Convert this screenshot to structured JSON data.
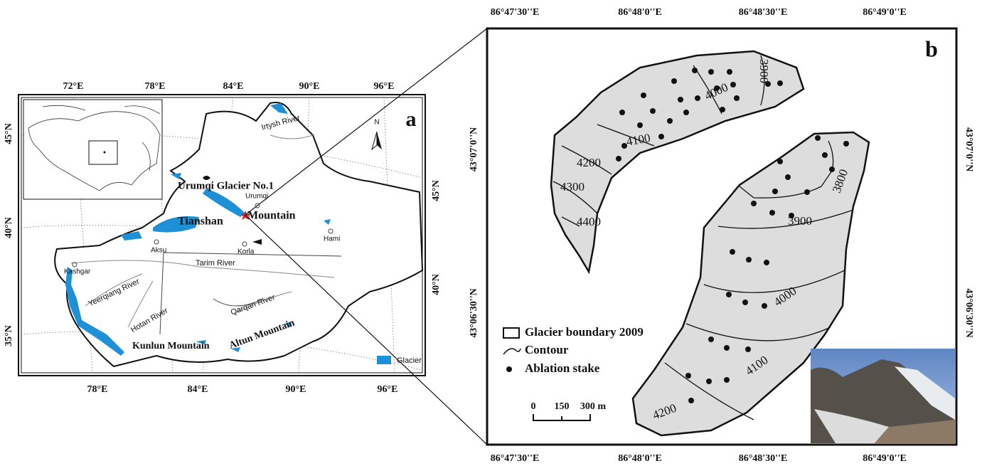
{
  "panel_a": {
    "label": "a",
    "lon_top": [
      "72°E",
      "78°E",
      "84°E",
      "90°E",
      "96°E"
    ],
    "lon_bottom": [
      "78°E",
      "84°E",
      "90°E",
      "96°E"
    ],
    "lat_left": [
      "45°N",
      "40°N",
      "35°N"
    ],
    "lat_right": [
      "45°N",
      "40°N"
    ],
    "places": [
      "Urumqi Glacier No.1",
      "Urumqi",
      "Tianshan",
      "Mountain",
      "Hami",
      "Aksu",
      "Korla",
      "Tarim River",
      "Kashgar",
      "Yeerqiang River",
      "Hotan River",
      "Qarqan River",
      "Altun Mountain",
      "Kunlun Mountain",
      "Irtysh River"
    ],
    "north": "N",
    "legend": "Glacier"
  },
  "panel_b": {
    "label": "b",
    "lon": [
      "86°47'30''E",
      "86°48'0''E",
      "86°48'30''E",
      "86°49'0''E"
    ],
    "lat": [
      "43°07'0''N",
      "43°06'30''N"
    ],
    "contours_west": [
      3900,
      4000,
      4100,
      4200,
      4300,
      4400
    ],
    "contours_east": [
      3800,
      3900,
      4000,
      4100,
      4200
    ],
    "legend": [
      "Glacier boundary 2009",
      "Contour",
      "Ablation stake"
    ],
    "scale": [
      "0",
      "150",
      "300 m"
    ]
  }
}
